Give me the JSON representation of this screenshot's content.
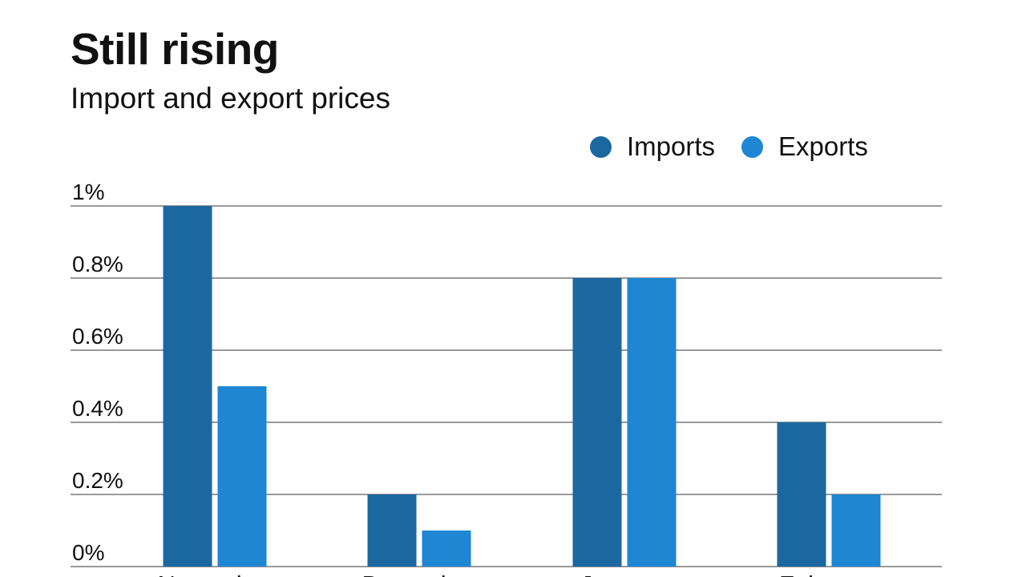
{
  "header": {
    "title": "Still rising",
    "subtitle": "Import and export prices"
  },
  "colors": {
    "imports": "#1b68a1",
    "exports": "#1e86d3",
    "gridline": "#333333"
  },
  "chart_data": {
    "type": "bar",
    "title": "Still rising",
    "subtitle": "Import and export prices",
    "xlabel": "",
    "ylabel": "",
    "categories": [
      "November",
      "December",
      "January",
      "February"
    ],
    "series": [
      {
        "name": "Imports",
        "values": [
          1.0,
          0.2,
          0.8,
          0.4
        ]
      },
      {
        "name": "Exports",
        "values": [
          0.5,
          0.1,
          0.8,
          0.2
        ]
      }
    ],
    "ylim": [
      0,
      1
    ],
    "yticks": [
      0,
      0.2,
      0.4,
      0.6,
      0.8,
      1
    ],
    "ytick_labels": [
      "0%",
      "0.2%",
      "0.4%",
      "0.6%",
      "0.8%",
      "1%"
    ],
    "grid": true,
    "legend_position": "top-right"
  }
}
